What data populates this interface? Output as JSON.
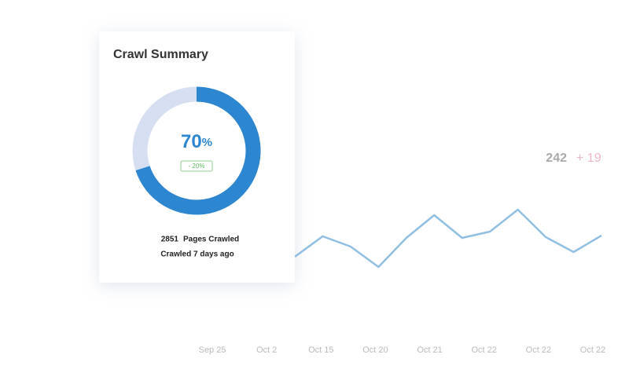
{
  "card": {
    "title": "Crawl Summary",
    "progress": {
      "type": "pie",
      "value": 70,
      "unit": "%",
      "change": "- 20%",
      "color": "#2d86d0",
      "rest_color": "#d6dff2"
    },
    "pages_count": 2851,
    "pages_label": "Pages Crawled",
    "last_crawl": "Crawled 7 days ago"
  },
  "stat": {
    "value": 242,
    "change": "+ 19"
  },
  "chart_data": {
    "type": "line",
    "color": "#8fc0e2",
    "values": [
      23,
      49,
      36,
      10,
      47,
      76,
      47,
      55,
      83,
      48,
      29,
      50
    ],
    "axis_labels": [
      "Sep 25",
      "Oct 2",
      "Oct 15",
      "Oct 20",
      "Oct 21",
      "Oct 22",
      "Oct 22",
      "Oct 22"
    ]
  }
}
